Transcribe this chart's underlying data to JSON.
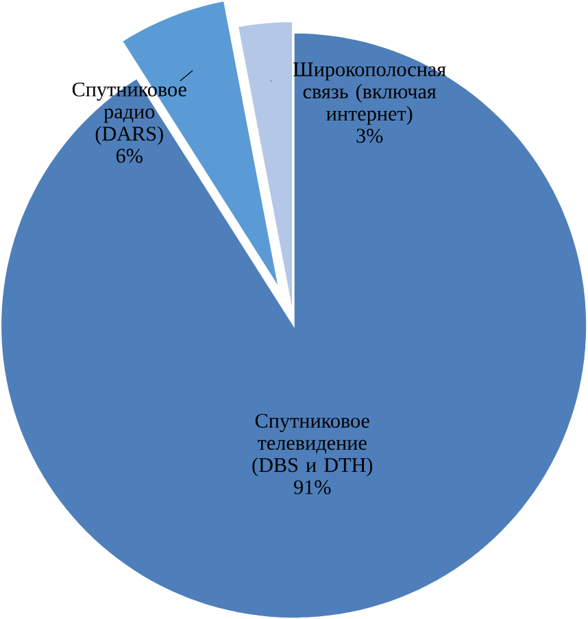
{
  "chart_data": {
    "type": "pie",
    "categories": [
      "Спутниковое телевидение (DBS и DTH)",
      "Спутниковое радио (DARS)",
      "Широкополосная связь (включая интернет)"
    ],
    "values": [
      91,
      6,
      3
    ],
    "value_labels": [
      "91%",
      "6%",
      "3%"
    ],
    "colors": [
      "#4f7fba",
      "#5b9bd5",
      "#b4c7e7"
    ]
  }
}
